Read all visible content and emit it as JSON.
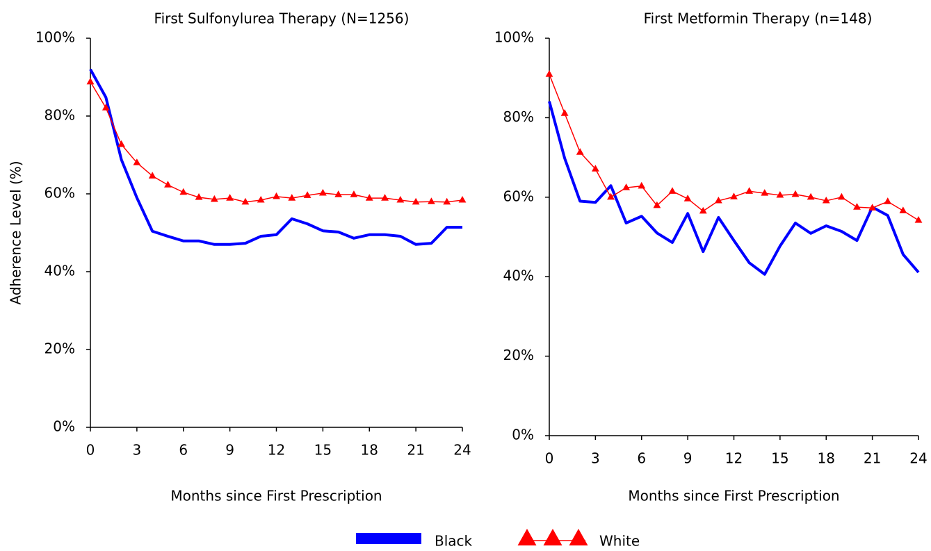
{
  "chart_data": [
    {
      "type": "line",
      "title": "First Sulfonylurea Therapy (N=1256)",
      "xlabel": "Months since First Prescription",
      "ylabel": "Adherence Level (%)",
      "x": [
        0,
        1,
        2,
        3,
        4,
        5,
        6,
        7,
        8,
        9,
        10,
        11,
        12,
        13,
        14,
        15,
        16,
        17,
        18,
        19,
        20,
        21,
        22,
        23,
        24
      ],
      "xlim": [
        0,
        24
      ],
      "xticks": [
        0,
        3,
        6,
        9,
        12,
        15,
        18,
        21,
        24
      ],
      "ylim": [
        0,
        100
      ],
      "yticks": [
        {
          "value": 0,
          "label": "0%"
        },
        {
          "value": 20,
          "label": "20%"
        },
        {
          "value": 40,
          "label": "40%"
        },
        {
          "value": 60,
          "label": "60%"
        },
        {
          "value": 80,
          "label": "80%"
        },
        {
          "value": 100,
          "label": "100%"
        }
      ],
      "series": [
        {
          "name": "Black",
          "color": "#0000ff",
          "values": [
            92,
            84.8,
            68.8,
            59,
            50.4,
            49.1,
            47.9,
            47.9,
            47,
            47,
            47.3,
            49.1,
            49.5,
            53.6,
            52.3,
            50.5,
            50.2,
            48.6,
            49.5,
            49.5,
            49.1,
            47,
            47.3,
            51.4,
            51.4
          ]
        },
        {
          "name": "White",
          "color": "#ff0000",
          "marker": "triangle",
          "values": [
            88.8,
            82.1,
            72.7,
            68,
            64.6,
            62.3,
            60.4,
            59.1,
            58.6,
            58.9,
            57.9,
            58.4,
            59.3,
            58.9,
            59.6,
            60.2,
            59.8,
            59.8,
            58.9,
            58.9,
            58.4,
            57.9,
            58,
            57.9,
            58.4
          ]
        }
      ]
    },
    {
      "type": "line",
      "title": "First Metformin Therapy  (n=148)",
      "xlabel": "Months since First Prescription",
      "x": [
        0,
        1,
        2,
        3,
        4,
        5,
        6,
        7,
        8,
        9,
        10,
        11,
        12,
        13,
        14,
        15,
        16,
        17,
        18,
        19,
        20,
        21,
        22,
        23,
        24
      ],
      "xlim": [
        0,
        24
      ],
      "xticks": [
        0,
        3,
        6,
        9,
        12,
        15,
        18,
        21,
        24
      ],
      "ylim": [
        0,
        100
      ],
      "yticks": [
        {
          "value": 0,
          "label": "0%"
        },
        {
          "value": 20,
          "label": "20%"
        },
        {
          "value": 40,
          "label": "40%"
        },
        {
          "value": 60,
          "label": "60%"
        },
        {
          "value": 80,
          "label": "80%"
        },
        {
          "value": 100,
          "label": "100%"
        }
      ],
      "series": [
        {
          "name": "Black",
          "color": "#0000ff",
          "values": [
            84.1,
            69.8,
            59,
            58.7,
            62.9,
            53.5,
            55.2,
            51,
            48.6,
            55.9,
            46.3,
            54.9,
            49.1,
            43.5,
            40.6,
            47.7,
            53.5,
            50.9,
            52.8,
            51.4,
            49.1,
            57.5,
            55.4,
            45.6,
            41.1
          ]
        },
        {
          "name": "White",
          "color": "#ff0000",
          "marker": "triangle",
          "values": [
            90.9,
            81.1,
            71.3,
            67.1,
            60,
            62.4,
            62.8,
            57.9,
            61.5,
            59.6,
            56.5,
            59.1,
            60.1,
            61.5,
            61,
            60.5,
            60.7,
            60,
            59.1,
            60,
            57.5,
            57.3,
            58.9,
            56.6,
            54.2
          ]
        }
      ]
    }
  ]
}
